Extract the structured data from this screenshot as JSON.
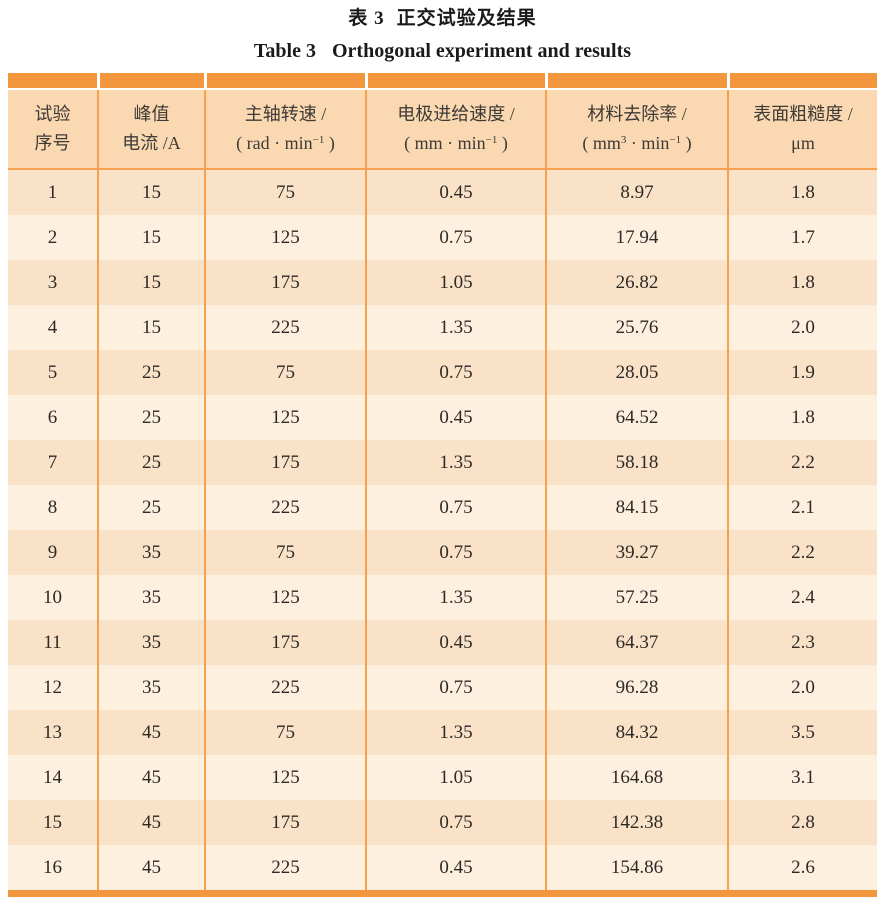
{
  "page": {
    "title_zh": {
      "label": "表 3",
      "text": "正交试验及结果"
    },
    "title_en": {
      "label": "Table 3",
      "text": "Orthogonal experiment and results"
    }
  },
  "colors": {
    "accent_orange": "#F3973E",
    "border_orange": "#F5A14D",
    "header_bg": "#FAD8B2",
    "row_odd_bg": "#FAE2C8",
    "row_even_bg": "#FDF0DF"
  },
  "chart_data": {
    "type": "table",
    "title_zh": "表 3 正交试验及结果",
    "title_en": "Table 3 Orthogonal experiment and results",
    "columns_plain": [
      "试验序号",
      "峰值电流 /A",
      "主轴转速 /（rad·min−1）",
      "电极进给速度 /（mm·min−1）",
      "材料去除率 /（mm3·min−1）",
      "表面粗糙度 /μm"
    ]
  },
  "table": {
    "columns": [
      {
        "id": "run",
        "line1": "试验",
        "line2segs": [
          {
            "t": "序号"
          }
        ]
      },
      {
        "id": "current",
        "line1": "峰值",
        "line2segs": [
          {
            "t": "电流 /A"
          }
        ]
      },
      {
        "id": "speed",
        "line1": "主轴转速 /",
        "line2segs": [
          {
            "t": "( rad · min"
          },
          {
            "t": "−1",
            "sup": true
          },
          {
            "t": " )"
          }
        ]
      },
      {
        "id": "feed",
        "line1": "电极进给速度 /",
        "line2segs": [
          {
            "t": "( mm · min"
          },
          {
            "t": "−1",
            "sup": true
          },
          {
            "t": " )"
          }
        ]
      },
      {
        "id": "mrr",
        "line1": "材料去除率 /",
        "line2segs": [
          {
            "t": "( mm"
          },
          {
            "t": "3",
            "sup": true
          },
          {
            "t": " · min"
          },
          {
            "t": "−1",
            "sup": true
          },
          {
            "t": " )"
          }
        ]
      },
      {
        "id": "ra",
        "line1": "表面粗糙度 /",
        "line2segs": [
          {
            "t": "μm"
          }
        ]
      }
    ],
    "rows": [
      [
        "1",
        "15",
        "75",
        "0.45",
        "8.97",
        "1.8"
      ],
      [
        "2",
        "15",
        "125",
        "0.75",
        "17.94",
        "1.7"
      ],
      [
        "3",
        "15",
        "175",
        "1.05",
        "26.82",
        "1.8"
      ],
      [
        "4",
        "15",
        "225",
        "1.35",
        "25.76",
        "2.0"
      ],
      [
        "5",
        "25",
        "75",
        "0.75",
        "28.05",
        "1.9"
      ],
      [
        "6",
        "25",
        "125",
        "0.45",
        "64.52",
        "1.8"
      ],
      [
        "7",
        "25",
        "175",
        "1.35",
        "58.18",
        "2.2"
      ],
      [
        "8",
        "25",
        "225",
        "0.75",
        "84.15",
        "2.1"
      ],
      [
        "9",
        "35",
        "75",
        "0.75",
        "39.27",
        "2.2"
      ],
      [
        "10",
        "35",
        "125",
        "1.35",
        "57.25",
        "2.4"
      ],
      [
        "11",
        "35",
        "175",
        "0.45",
        "64.37",
        "2.3"
      ],
      [
        "12",
        "35",
        "225",
        "0.75",
        "96.28",
        "2.0"
      ],
      [
        "13",
        "45",
        "75",
        "1.35",
        "84.32",
        "3.5"
      ],
      [
        "14",
        "45",
        "125",
        "1.05",
        "164.68",
        "3.1"
      ],
      [
        "15",
        "45",
        "175",
        "0.75",
        "142.38",
        "2.8"
      ],
      [
        "16",
        "45",
        "225",
        "0.45",
        "154.86",
        "2.6"
      ]
    ]
  }
}
